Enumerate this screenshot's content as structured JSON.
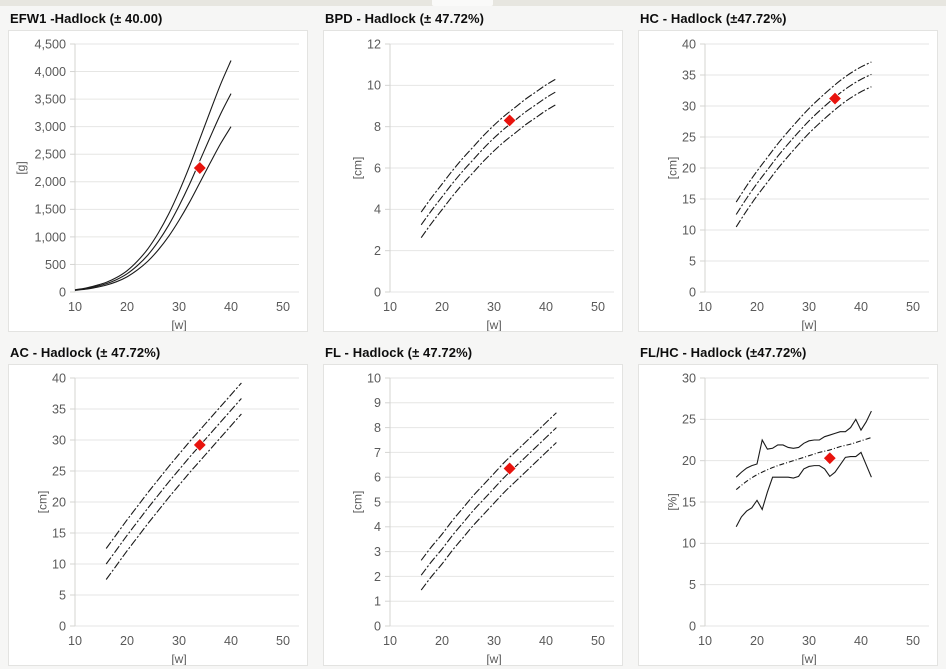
{
  "page": {
    "background": "#f6f6f5",
    "top_strip_color": "#e7e6e0",
    "card_background": "#ffffff",
    "card_border": "#e3e3e1",
    "grid_color": "#e6e6e4",
    "axis_color": "#d4d4d2",
    "tick_text_color": "#5a5a5a",
    "curve_color": "#1a1a1a",
    "marker_color": "#e8130d"
  },
  "chart_data": [
    {
      "type": "line",
      "title": "EFW1 -Hadlock (± 40.00)",
      "xlabel": "[w]",
      "ylabel": "[g]",
      "xlim": [
        10,
        50
      ],
      "xticks": [
        10,
        20,
        30,
        40,
        50
      ],
      "ylim": [
        0,
        4500
      ],
      "ystep": 500,
      "thousands": true,
      "grid": "horizontal",
      "legend": "none",
      "series": [
        {
          "name": "upper",
          "smooth": true,
          "dash": null,
          "x": [
            10,
            12,
            14,
            16,
            18,
            20,
            22,
            24,
            26,
            28,
            30,
            32,
            34,
            36,
            38,
            40
          ],
          "y": [
            41,
            70,
            117,
            175,
            263,
            385,
            560,
            782,
            1068,
            1412,
            1820,
            2276,
            2777,
            3279,
            3769,
            4200
          ]
        },
        {
          "name": "median",
          "smooth": true,
          "dash": null,
          "x": [
            10,
            12,
            14,
            16,
            18,
            20,
            22,
            24,
            26,
            28,
            30,
            32,
            34,
            36,
            38,
            40
          ],
          "y": [
            35,
            60,
            100,
            150,
            225,
            330,
            480,
            670,
            915,
            1210,
            1560,
            1950,
            2380,
            2810,
            3230,
            3600
          ]
        },
        {
          "name": "lower",
          "smooth": true,
          "dash": null,
          "x": [
            10,
            12,
            14,
            16,
            18,
            20,
            22,
            24,
            26,
            28,
            30,
            32,
            34,
            36,
            38,
            40
          ],
          "y": [
            29,
            50,
            83,
            125,
            187,
            275,
            400,
            558,
            762,
            1008,
            1300,
            1625,
            1983,
            2342,
            2692,
            3000
          ]
        }
      ],
      "marker": {
        "x": 34,
        "y": 2250,
        "shape": "diamond"
      }
    },
    {
      "type": "line",
      "title": "BPD - Hadlock (± 47.72%)",
      "xlabel": "[w]",
      "ylabel": "[cm]",
      "xlim": [
        10,
        50
      ],
      "xticks": [
        10,
        20,
        30,
        40,
        50
      ],
      "ylim": [
        0,
        12
      ],
      "ystep": 2,
      "thousands": false,
      "grid": "horizontal",
      "legend": "none",
      "series": [
        {
          "name": "upper",
          "smooth": true,
          "dash": "8 2 2 2",
          "x": [
            16,
            18,
            20,
            22,
            24,
            26,
            28,
            30,
            32,
            34,
            36,
            38,
            40,
            42
          ],
          "y": [
            3.87,
            4.57,
            5.22,
            5.87,
            6.47,
            7.02,
            7.57,
            8.07,
            8.52,
            8.92,
            9.32,
            9.67,
            10.02,
            10.32
          ]
        },
        {
          "name": "median",
          "smooth": true,
          "dash": "8 2 2 2",
          "x": [
            16,
            18,
            20,
            22,
            24,
            26,
            28,
            30,
            32,
            34,
            36,
            38,
            40,
            42
          ],
          "y": [
            3.25,
            3.95,
            4.6,
            5.25,
            5.85,
            6.4,
            6.95,
            7.45,
            7.9,
            8.3,
            8.7,
            9.05,
            9.4,
            9.7
          ]
        },
        {
          "name": "lower",
          "smooth": true,
          "dash": "8 2 2 2",
          "x": [
            16,
            18,
            20,
            22,
            24,
            26,
            28,
            30,
            32,
            34,
            36,
            38,
            40,
            42
          ],
          "y": [
            2.63,
            3.33,
            3.98,
            4.63,
            5.23,
            5.78,
            6.33,
            6.83,
            7.28,
            7.68,
            8.08,
            8.43,
            8.78,
            9.08
          ]
        }
      ],
      "marker": {
        "x": 33,
        "y": 8.3,
        "shape": "diamond"
      }
    },
    {
      "type": "line",
      "title": "HC - Hadlock (±47.72%)",
      "xlabel": "[w]",
      "ylabel": "[cm]",
      "xlim": [
        10,
        50
      ],
      "xticks": [
        10,
        20,
        30,
        40,
        50
      ],
      "ylim": [
        0,
        40
      ],
      "ystep": 5,
      "thousands": false,
      "grid": "horizontal",
      "legend": "none",
      "series": [
        {
          "name": "upper",
          "smooth": true,
          "dash": "8 2 2 2",
          "x": [
            16,
            18,
            20,
            22,
            24,
            26,
            28,
            30,
            32,
            34,
            36,
            38,
            40,
            42
          ],
          "y": [
            14.5,
            17.1,
            19.5,
            21.7,
            23.9,
            25.9,
            27.8,
            29.6,
            31.2,
            32.7,
            34.1,
            35.3,
            36.3,
            37.1
          ]
        },
        {
          "name": "median",
          "smooth": true,
          "dash": "8 2 2 2",
          "x": [
            16,
            18,
            20,
            22,
            24,
            26,
            28,
            30,
            32,
            34,
            36,
            38,
            40,
            42
          ],
          "y": [
            12.5,
            15.1,
            17.5,
            19.7,
            21.9,
            23.9,
            25.8,
            27.6,
            29.2,
            30.7,
            32.1,
            33.3,
            34.3,
            35.1
          ]
        },
        {
          "name": "lower",
          "smooth": true,
          "dash": "8 2 2 2",
          "x": [
            16,
            18,
            20,
            22,
            24,
            26,
            28,
            30,
            32,
            34,
            36,
            38,
            40,
            42
          ],
          "y": [
            10.5,
            13.1,
            15.5,
            17.7,
            19.9,
            21.9,
            23.8,
            25.6,
            27.2,
            28.7,
            30.1,
            31.3,
            32.3,
            33.1
          ]
        }
      ],
      "marker": {
        "x": 35,
        "y": 31.2,
        "shape": "diamond"
      }
    },
    {
      "type": "line",
      "title": "AC - Hadlock (± 47.72%)",
      "xlabel": "[w]",
      "ylabel": "[cm]",
      "xlim": [
        10,
        50
      ],
      "xticks": [
        10,
        20,
        30,
        40,
        50
      ],
      "ylim": [
        0,
        40
      ],
      "ystep": 5,
      "thousands": false,
      "grid": "horizontal",
      "legend": "none",
      "series": [
        {
          "name": "upper",
          "smooth": true,
          "dash": "8 2 2 2",
          "x": [
            16,
            18,
            20,
            22,
            24,
            26,
            28,
            30,
            32,
            34,
            36,
            38,
            40,
            42
          ],
          "y": [
            12.5,
            14.8,
            17.1,
            19.3,
            21.5,
            23.6,
            25.7,
            27.7,
            29.7,
            31.6,
            33.5,
            35.4,
            37.3,
            39.2
          ]
        },
        {
          "name": "median",
          "smooth": true,
          "dash": "8 2 2 2",
          "x": [
            16,
            18,
            20,
            22,
            24,
            26,
            28,
            30,
            32,
            34,
            36,
            38,
            40,
            42
          ],
          "y": [
            10.0,
            12.3,
            14.6,
            16.8,
            19.0,
            21.1,
            23.2,
            25.2,
            27.2,
            29.1,
            31.0,
            32.9,
            34.8,
            36.7
          ]
        },
        {
          "name": "lower",
          "smooth": true,
          "dash": "8 2 2 2",
          "x": [
            16,
            18,
            20,
            22,
            24,
            26,
            28,
            30,
            32,
            34,
            36,
            38,
            40,
            42
          ],
          "y": [
            7.5,
            9.8,
            12.1,
            14.3,
            16.5,
            18.6,
            20.7,
            22.7,
            24.7,
            26.6,
            28.5,
            30.4,
            32.3,
            34.2
          ]
        }
      ],
      "marker": {
        "x": 34,
        "y": 29.2,
        "shape": "diamond"
      }
    },
    {
      "type": "line",
      "title": "FL - Hadlock (± 47.72%)",
      "xlabel": "[w]",
      "ylabel": "[cm]",
      "xlim": [
        10,
        50
      ],
      "xticks": [
        10,
        20,
        30,
        40,
        50
      ],
      "ylim": [
        0,
        10
      ],
      "ystep": 1,
      "thousands": false,
      "grid": "horizontal",
      "legend": "none",
      "series": [
        {
          "name": "upper",
          "smooth": true,
          "dash": "8 2 2 2",
          "x": [
            16,
            18,
            20,
            22,
            24,
            26,
            28,
            30,
            32,
            34,
            36,
            38,
            40,
            42
          ],
          "y": [
            2.65,
            3.2,
            3.7,
            4.25,
            4.75,
            5.25,
            5.7,
            6.15,
            6.6,
            7.0,
            7.4,
            7.8,
            8.2,
            8.6
          ]
        },
        {
          "name": "median",
          "smooth": true,
          "dash": "8 2 2 2",
          "x": [
            16,
            18,
            20,
            22,
            24,
            26,
            28,
            30,
            32,
            34,
            36,
            38,
            40,
            42
          ],
          "y": [
            2.05,
            2.6,
            3.1,
            3.65,
            4.15,
            4.65,
            5.1,
            5.55,
            6.0,
            6.4,
            6.8,
            7.2,
            7.6,
            8.0
          ]
        },
        {
          "name": "lower",
          "smooth": true,
          "dash": "8 2 2 2",
          "x": [
            16,
            18,
            20,
            22,
            24,
            26,
            28,
            30,
            32,
            34,
            36,
            38,
            40,
            42
          ],
          "y": [
            1.45,
            2.0,
            2.5,
            3.05,
            3.55,
            4.05,
            4.5,
            4.95,
            5.4,
            5.8,
            6.2,
            6.6,
            7.0,
            7.4
          ]
        }
      ],
      "marker": {
        "x": 33,
        "y": 6.35,
        "shape": "diamond"
      }
    },
    {
      "type": "line",
      "title": "FL/HC - Hadlock (±47.72%)",
      "xlabel": "[w]",
      "ylabel": "[%]",
      "xlim": [
        10,
        50
      ],
      "xticks": [
        10,
        20,
        30,
        40,
        50
      ],
      "ylim": [
        0,
        30
      ],
      "ystep": 5,
      "thousands": false,
      "grid": "horizontal",
      "legend": "none",
      "series": [
        {
          "name": "upper",
          "smooth": false,
          "dash": null,
          "x": [
            16,
            17,
            18,
            19,
            20,
            21,
            22,
            23,
            24,
            25,
            26,
            27,
            28,
            29,
            30,
            31,
            32,
            33,
            34,
            35,
            36,
            37,
            38,
            39,
            40,
            41,
            42
          ],
          "y": [
            18.0,
            18.6,
            19.1,
            19.4,
            19.6,
            22.5,
            21.4,
            21.5,
            21.9,
            21.9,
            21.6,
            21.5,
            21.6,
            22.1,
            22.4,
            22.5,
            22.5,
            22.9,
            23.1,
            23.3,
            23.5,
            23.5,
            24.0,
            25.0,
            23.7,
            24.7,
            26.0
          ]
        },
        {
          "name": "median",
          "smooth": true,
          "dash": "5 2 1 2",
          "x": [
            16,
            18,
            20,
            22,
            24,
            26,
            28,
            30,
            32,
            34,
            36,
            38,
            40,
            42
          ],
          "y": [
            16.5,
            17.5,
            18.3,
            18.9,
            19.4,
            19.8,
            20.2,
            20.6,
            21.0,
            21.3,
            21.7,
            22.0,
            22.4,
            22.8
          ]
        },
        {
          "name": "lower",
          "smooth": false,
          "dash": null,
          "x": [
            16,
            17,
            18,
            19,
            20,
            21,
            22,
            23,
            24,
            25,
            26,
            27,
            28,
            29,
            30,
            31,
            32,
            33,
            34,
            35,
            36,
            37,
            38,
            39,
            40,
            41,
            42
          ],
          "y": [
            12.0,
            13.2,
            13.9,
            14.3,
            15.2,
            14.1,
            16.2,
            18.0,
            18.0,
            18.0,
            18.0,
            17.9,
            18.1,
            19.0,
            19.3,
            19.4,
            19.4,
            19.0,
            18.1,
            18.6,
            19.5,
            20.4,
            20.5,
            20.5,
            21.0,
            19.5,
            18.0
          ]
        }
      ],
      "marker": {
        "x": 34,
        "y": 20.3,
        "shape": "diamond"
      }
    }
  ]
}
